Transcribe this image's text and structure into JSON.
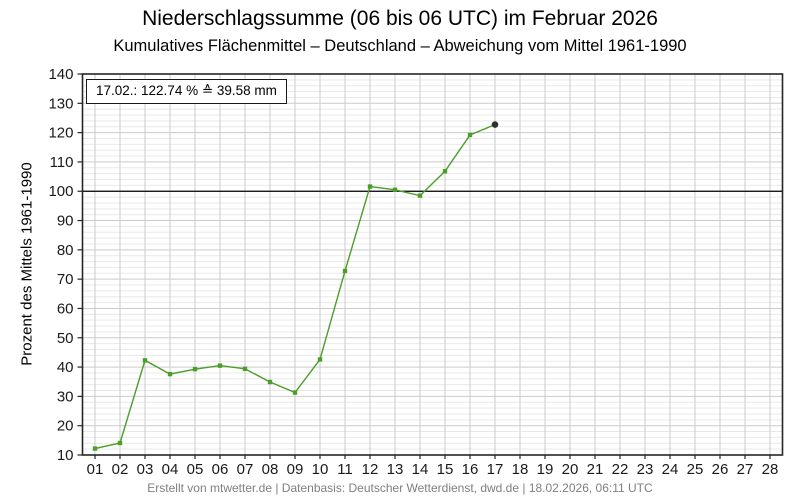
{
  "chart_data": {
    "type": "line",
    "title": "Niederschlagssumme (06 bis 06 UTC) im Februar 2026",
    "subtitle": "Kumulatives Flächenmittel – Deutschland – Abweichung vom Mittel 1961-1990",
    "ylabel": "Prozent des Mittels 1961-1990",
    "xlabel": "",
    "annotation": "17.02.: 122.74 % ≙ 39.58 mm",
    "categories": [
      "01",
      "02",
      "03",
      "04",
      "05",
      "06",
      "07",
      "08",
      "09",
      "10",
      "11",
      "12",
      "13",
      "14",
      "15",
      "16",
      "17",
      "18",
      "19",
      "20",
      "21",
      "22",
      "23",
      "24",
      "25",
      "26",
      "27",
      "28"
    ],
    "x": [
      1,
      2,
      3,
      4,
      5,
      6,
      7,
      8,
      9,
      10,
      11,
      12,
      13,
      14,
      15,
      16,
      17
    ],
    "values": [
      12.2,
      14.1,
      42.3,
      37.6,
      39.3,
      40.5,
      39.4,
      34.9,
      31.3,
      42.6,
      72.8,
      101.6,
      100.5,
      98.5,
      106.8,
      119.2,
      122.74
    ],
    "ylim": [
      10,
      140
    ],
    "xlim": [
      0.5,
      28.5
    ],
    "yticks": [
      10,
      20,
      30,
      40,
      50,
      60,
      70,
      80,
      90,
      100,
      110,
      120,
      130,
      140
    ],
    "ytick_step": 10,
    "minor_ytick_step": 2,
    "reference_line": 100,
    "grid": true,
    "legend": "none",
    "colors": {
      "line": "#4b9e2a",
      "marker": "#4b9e2a",
      "last_marker": "#2f2f2f",
      "major_grid": "#cbcbcb",
      "minor_grid": "#e9e9e9",
      "vertical_grid": "#cbcbcb",
      "reference": "#000000",
      "border": "#262626",
      "tick_label": "#1a1a1a",
      "annotation_text": "#4b9e2a"
    }
  },
  "footer": {
    "text": "Erstellt von mtwetter.de | Datenbasis: Deutscher Wetterdienst, dwd.de | 18.02.2026, 06:11 UTC"
  }
}
